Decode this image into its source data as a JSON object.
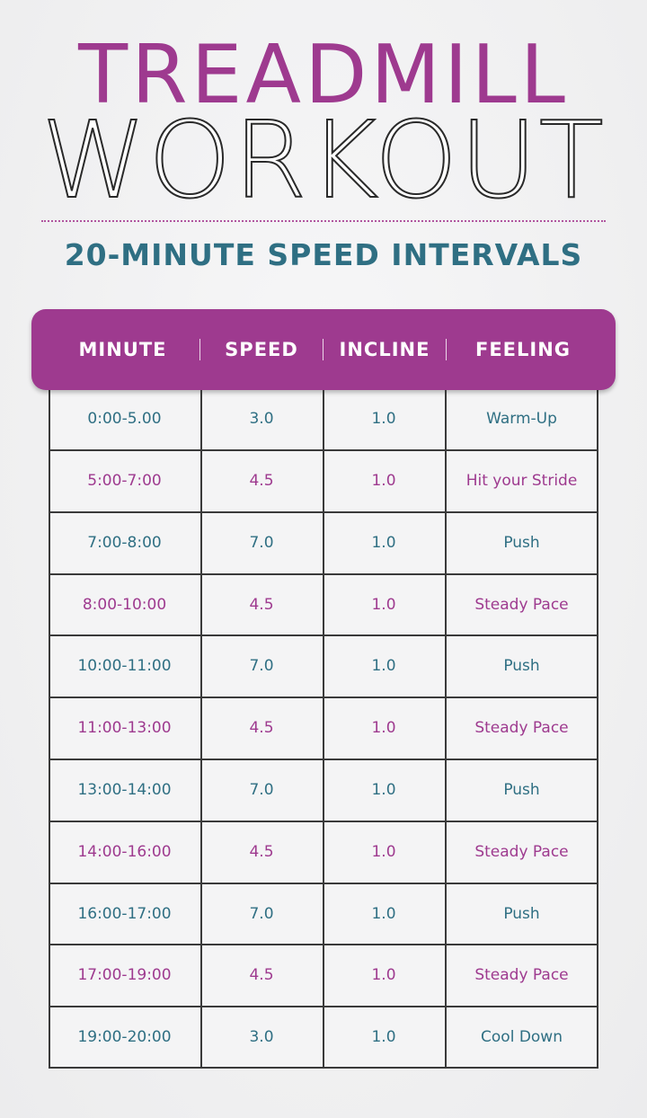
{
  "title_line1": "TREADMILL",
  "title_line2": "WORKOUT",
  "subtitle": "20-MINUTE SPEED INTERVALS",
  "colors": {
    "purple": "#9e3a8f",
    "teal": "#2f6f83",
    "ink": "#2a2a2a"
  },
  "table": {
    "headers": [
      "MINUTE",
      "SPEED",
      "INCLINE",
      "FEELING"
    ],
    "rows": [
      {
        "minute": "0:00-5.00",
        "speed": "3.0",
        "incline": "1.0",
        "feeling": "Warm-Up"
      },
      {
        "minute": "5:00-7:00",
        "speed": "4.5",
        "incline": "1.0",
        "feeling": "Hit your Stride"
      },
      {
        "minute": "7:00-8:00",
        "speed": "7.0",
        "incline": "1.0",
        "feeling": "Push"
      },
      {
        "minute": "8:00-10:00",
        "speed": "4.5",
        "incline": "1.0",
        "feeling": "Steady Pace"
      },
      {
        "minute": "10:00-11:00",
        "speed": "7.0",
        "incline": "1.0",
        "feeling": "Push"
      },
      {
        "minute": "11:00-13:00",
        "speed": "4.5",
        "incline": "1.0",
        "feeling": "Steady Pace"
      },
      {
        "minute": "13:00-14:00",
        "speed": "7.0",
        "incline": "1.0",
        "feeling": "Push"
      },
      {
        "minute": "14:00-16:00",
        "speed": "4.5",
        "incline": "1.0",
        "feeling": "Steady Pace"
      },
      {
        "minute": "16:00-17:00",
        "speed": "7.0",
        "incline": "1.0",
        "feeling": "Push"
      },
      {
        "minute": "17:00-19:00",
        "speed": "4.5",
        "incline": "1.0",
        "feeling": "Steady Pace"
      },
      {
        "minute": "19:00-20:00",
        "speed": "3.0",
        "incline": "1.0",
        "feeling": "Cool Down"
      }
    ]
  }
}
